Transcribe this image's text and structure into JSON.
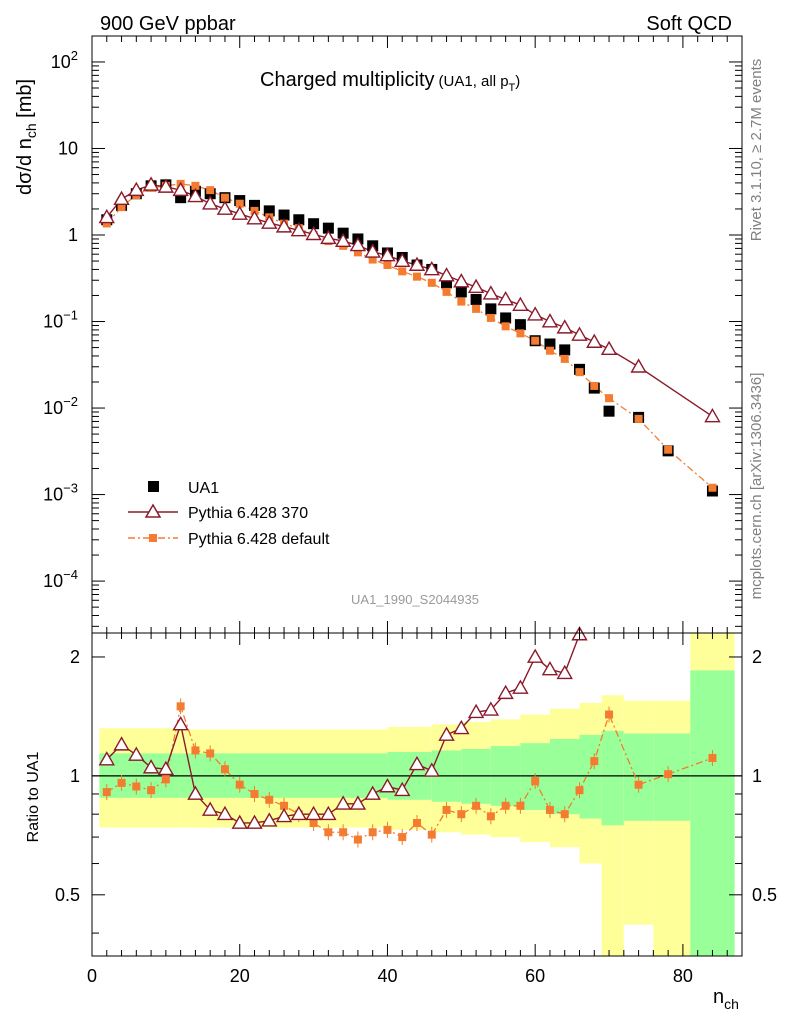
{
  "header": {
    "left": "900 GeV ppbar",
    "right": "Soft QCD",
    "side_top": "Rivet 3.1.10, ≥ 2.7M events",
    "side_bottom": "mcplots.cern.ch [arXiv:1306.3436]",
    "watermark": "UA1_1990_S2044935"
  },
  "chart_data": {
    "type": "scatter",
    "title": "Charged multiplicity",
    "subtitle": "(UA1, all p",
    "subtitle_sub": "T",
    "subtitle_close": ")",
    "ylabel": "dσ/d n",
    "ylabel_sub": "ch",
    "ylabel_unit": " [mb]",
    "xlabel": "n",
    "xlabel_sub": "ch",
    "ratio_ylabel": "Ratio to UA1",
    "xlim": [
      0,
      88
    ],
    "ylim_log10": [
      -4.6,
      2.3
    ],
    "ratio_ylim": [
      0.35,
      2.3
    ],
    "x_ticks": [
      "0",
      "20",
      "40",
      "60",
      "80"
    ],
    "y_ticks": [
      {
        "base": "10",
        "exp": "2",
        "v": 2
      },
      {
        "base": "10",
        "exp": "",
        "v": 1
      },
      {
        "base": "1",
        "exp": "",
        "v": 0
      },
      {
        "base": "10",
        "exp": "−1",
        "v": -1
      },
      {
        "base": "10",
        "exp": "−2",
        "v": -2
      },
      {
        "base": "10",
        "exp": "−3",
        "v": -3
      },
      {
        "base": "10",
        "exp": "−4",
        "v": -4
      }
    ],
    "ratio_ticks": [
      "0.5",
      "1",
      "2"
    ],
    "legend": [
      "UA1",
      "Pythia 6.428 370",
      "Pythia 6.428 default"
    ],
    "series": [
      {
        "name": "UA1",
        "color": "#000000",
        "x": [
          2,
          4,
          6,
          8,
          10,
          12,
          14,
          16,
          18,
          20,
          22,
          24,
          26,
          28,
          30,
          32,
          34,
          36,
          38,
          40,
          42,
          44,
          46,
          48,
          50,
          52,
          54,
          56,
          58,
          60,
          62,
          64,
          66,
          68,
          70,
          74,
          78,
          84
        ],
        "y": [
          1.5,
          2.2,
          3.0,
          3.7,
          3.8,
          2.7,
          3.2,
          3.0,
          2.7,
          2.5,
          2.2,
          1.9,
          1.7,
          1.5,
          1.35,
          1.2,
          1.05,
          0.9,
          0.75,
          0.62,
          0.55,
          0.45,
          0.4,
          0.28,
          0.22,
          0.18,
          0.14,
          0.11,
          0.092,
          0.06,
          0.055,
          0.047,
          0.028,
          0.017,
          0.0092,
          0.0078,
          0.0032,
          0.0011
        ]
      },
      {
        "name": "Pythia 6.428 370",
        "color": "#8b1a2b",
        "x": [
          2,
          4,
          6,
          8,
          10,
          12,
          14,
          16,
          18,
          20,
          22,
          24,
          26,
          28,
          30,
          32,
          34,
          36,
          38,
          40,
          42,
          44,
          46,
          48,
          50,
          52,
          54,
          56,
          58,
          60,
          62,
          64,
          66,
          68,
          70,
          74,
          84
        ],
        "y": [
          1.6,
          2.6,
          3.3,
          3.8,
          3.6,
          3.3,
          2.8,
          2.3,
          2.0,
          1.75,
          1.55,
          1.38,
          1.25,
          1.13,
          1.02,
          0.92,
          0.85,
          0.76,
          0.64,
          0.58,
          0.5,
          0.45,
          0.4,
          0.34,
          0.29,
          0.25,
          0.21,
          0.18,
          0.155,
          0.12,
          0.1,
          0.085,
          0.07,
          0.058,
          0.048,
          0.03,
          0.008
        ]
      },
      {
        "name": "Pythia 6.428 default",
        "color": "#f47c30",
        "x": [
          2,
          4,
          6,
          8,
          10,
          12,
          14,
          16,
          18,
          20,
          22,
          24,
          26,
          28,
          30,
          32,
          34,
          36,
          38,
          40,
          42,
          44,
          46,
          48,
          50,
          52,
          54,
          56,
          58,
          60,
          62,
          64,
          66,
          68,
          70,
          74,
          78,
          84
        ],
        "y": [
          1.36,
          2.1,
          2.9,
          3.5,
          3.7,
          3.9,
          3.7,
          3.3,
          2.7,
          2.3,
          1.9,
          1.6,
          1.35,
          1.2,
          1.0,
          0.85,
          0.75,
          0.63,
          0.52,
          0.45,
          0.38,
          0.33,
          0.28,
          0.22,
          0.17,
          0.14,
          0.11,
          0.088,
          0.073,
          0.06,
          0.046,
          0.037,
          0.026,
          0.018,
          0.013,
          0.0075,
          0.0033,
          0.0012
        ]
      }
    ],
    "ratio_series": [
      {
        "name": "Pythia 6.428 370",
        "color": "#8b1a2b",
        "x": [
          2,
          4,
          6,
          8,
          10,
          12,
          14,
          16,
          18,
          20,
          22,
          24,
          26,
          28,
          30,
          32,
          34,
          36,
          38,
          40,
          42,
          44,
          46,
          48,
          50,
          52,
          54,
          56,
          58,
          60,
          62,
          64,
          66
        ],
        "y": [
          1.1,
          1.2,
          1.13,
          1.05,
          1.04,
          1.35,
          0.9,
          0.82,
          0.8,
          0.76,
          0.76,
          0.77,
          0.79,
          0.8,
          0.8,
          0.8,
          0.85,
          0.85,
          0.9,
          0.94,
          0.92,
          1.07,
          1.03,
          1.27,
          1.32,
          1.45,
          1.47,
          1.62,
          1.67,
          2.0,
          1.86,
          1.82,
          2.28
        ]
      },
      {
        "name": "Pythia 6.428 default",
        "color": "#f47c30",
        "x": [
          2,
          4,
          6,
          8,
          10,
          12,
          14,
          16,
          18,
          20,
          22,
          24,
          26,
          28,
          30,
          32,
          34,
          36,
          38,
          40,
          42,
          44,
          46,
          48,
          50,
          52,
          54,
          56,
          58,
          60,
          62,
          64,
          66,
          68,
          70,
          74,
          78,
          84
        ],
        "y": [
          0.91,
          0.96,
          0.94,
          0.92,
          0.98,
          1.5,
          1.16,
          1.14,
          1.04,
          0.95,
          0.9,
          0.87,
          0.84,
          0.8,
          0.76,
          0.72,
          0.72,
          0.69,
          0.72,
          0.73,
          0.7,
          0.76,
          0.71,
          0.82,
          0.8,
          0.84,
          0.79,
          0.84,
          0.84,
          0.97,
          0.82,
          0.8,
          0.92,
          1.09,
          1.43,
          0.95,
          1.01,
          1.11
        ]
      }
    ],
    "bands": [
      {
        "x0": 1,
        "x1": 12,
        "inner": [
          0.88,
          1.14
        ],
        "outer": [
          0.74,
          1.32
        ]
      },
      {
        "x0": 12,
        "x1": 40,
        "inner": [
          0.88,
          1.14
        ],
        "outer": [
          0.74,
          1.31
        ]
      },
      {
        "x0": 40,
        "x1": 46,
        "inner": [
          0.87,
          1.15
        ],
        "outer": [
          0.73,
          1.33
        ]
      },
      {
        "x0": 46,
        "x1": 50,
        "inner": [
          0.86,
          1.16
        ],
        "outer": [
          0.72,
          1.35
        ]
      },
      {
        "x0": 50,
        "x1": 54,
        "inner": [
          0.85,
          1.17
        ],
        "outer": [
          0.71,
          1.37
        ]
      },
      {
        "x0": 54,
        "x1": 58,
        "inner": [
          0.84,
          1.19
        ],
        "outer": [
          0.7,
          1.39
        ]
      },
      {
        "x0": 58,
        "x1": 62,
        "inner": [
          0.82,
          1.21
        ],
        "outer": [
          0.68,
          1.43
        ]
      },
      {
        "x0": 62,
        "x1": 66,
        "inner": [
          0.8,
          1.24
        ],
        "outer": [
          0.66,
          1.48
        ]
      },
      {
        "x0": 66,
        "x1": 69,
        "inner": [
          0.78,
          1.27
        ],
        "outer": [
          0.6,
          1.53
        ]
      },
      {
        "x0": 69,
        "x1": 72,
        "inner": [
          0.75,
          1.3
        ],
        "outer": [
          0.35,
          1.6
        ]
      },
      {
        "x0": 72,
        "x1": 76,
        "inner": [
          0.77,
          1.28
        ],
        "outer": [
          0.42,
          1.55
        ]
      },
      {
        "x0": 76,
        "x1": 81,
        "inner": [
          0.77,
          1.28
        ],
        "outer": [
          0.35,
          1.55
        ]
      },
      {
        "x0": 81,
        "x1": 87,
        "inner": [
          0.35,
          1.85
        ],
        "outer": [
          0.35,
          2.3
        ]
      }
    ]
  }
}
